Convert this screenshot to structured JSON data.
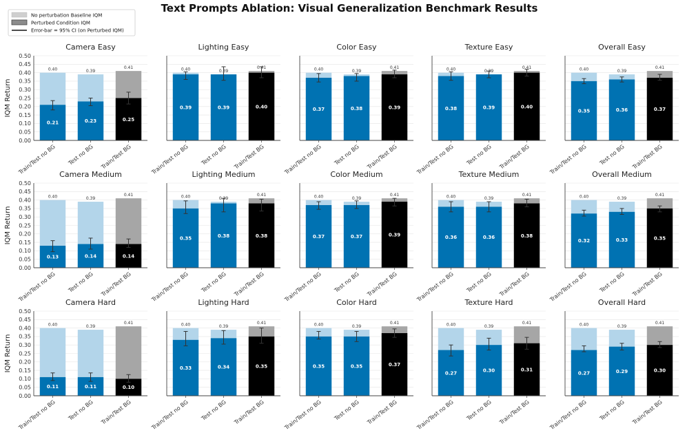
{
  "suptitle": "Text Prompts Ablation: Visual Generalization Benchmark Results",
  "legend": {
    "position": "top-left",
    "entries": [
      {
        "label": "No perturbation Baseline IQM",
        "swatch": "light"
      },
      {
        "label": "Perturbed Condition IQM",
        "swatch": "gray"
      },
      {
        "label": "Error-bar = 95% CI (on Perturbed IQM)",
        "swatch": "line"
      }
    ]
  },
  "colors": {
    "train_no_bg_perturbed": "#0072b2",
    "train_no_bg_baseline": "#b3d5ea",
    "train_test_bg_perturbed": "#000000",
    "train_test_bg_baseline": "#a6a6a6"
  },
  "chart_data": {
    "type": "bar",
    "ylabel": "IQM Return",
    "ylim": [
      0,
      0.5
    ],
    "yticks": [
      "0.00",
      "0.05",
      "0.10",
      "0.15",
      "0.20",
      "0.25",
      "0.30",
      "0.35",
      "0.40",
      "0.45",
      "0.50"
    ],
    "categories": [
      "Train/Test no BG",
      "Test no BG",
      "Train/Test BG"
    ],
    "baseline": [
      0.4,
      0.39,
      0.41
    ],
    "baseline_labels": [
      "0.40",
      "0.39",
      "0.41"
    ],
    "grid": true,
    "panels": [
      {
        "title": "Camera Easy",
        "values": [
          0.21,
          0.23,
          0.25
        ],
        "labels": [
          "0.21",
          "0.23",
          "0.25"
        ],
        "ci": [
          [
            0.18,
            0.235
          ],
          [
            0.205,
            0.25
          ],
          [
            0.215,
            0.285
          ]
        ]
      },
      {
        "title": "Lighting Easy",
        "values": [
          0.39,
          0.39,
          0.4
        ],
        "labels": [
          "0.39",
          "0.39",
          "0.40"
        ],
        "ci": [
          [
            0.36,
            0.405
          ],
          [
            0.355,
            0.435
          ],
          [
            0.37,
            0.435
          ]
        ]
      },
      {
        "title": "Color Easy",
        "values": [
          0.37,
          0.38,
          0.39
        ],
        "labels": [
          "0.37",
          "0.38",
          "0.39"
        ],
        "ci": [
          [
            0.345,
            0.395
          ],
          [
            0.35,
            0.395
          ],
          [
            0.37,
            0.415
          ]
        ]
      },
      {
        "title": "Texture Easy",
        "values": [
          0.38,
          0.39,
          0.4
        ],
        "labels": [
          "0.38",
          "0.39",
          "0.40"
        ],
        "ci": [
          [
            0.355,
            0.405
          ],
          [
            0.37,
            0.41
          ],
          [
            0.38,
            0.42
          ]
        ]
      },
      {
        "title": "Overall Easy",
        "values": [
          0.35,
          0.36,
          0.37
        ],
        "labels": [
          "0.35",
          "0.36",
          "0.37"
        ],
        "ci": [
          [
            0.335,
            0.365
          ],
          [
            0.345,
            0.375
          ],
          [
            0.355,
            0.39
          ]
        ]
      },
      {
        "title": "Camera Medium",
        "values": [
          0.13,
          0.14,
          0.14
        ],
        "labels": [
          "0.13",
          "0.14",
          "0.14"
        ],
        "ci": [
          [
            0.095,
            0.16
          ],
          [
            0.11,
            0.175
          ],
          [
            0.12,
            0.17
          ]
        ]
      },
      {
        "title": "Lighting Medium",
        "values": [
          0.35,
          0.38,
          0.38
        ],
        "labels": [
          "0.35",
          "0.38",
          "0.38"
        ],
        "ci": [
          [
            0.32,
            0.395
          ],
          [
            0.33,
            0.41
          ],
          [
            0.335,
            0.405
          ]
        ]
      },
      {
        "title": "Color Medium",
        "values": [
          0.37,
          0.37,
          0.39
        ],
        "labels": [
          "0.37",
          "0.37",
          "0.39"
        ],
        "ci": [
          [
            0.345,
            0.39
          ],
          [
            0.35,
            0.395
          ],
          [
            0.365,
            0.41
          ]
        ]
      },
      {
        "title": "Texture Medium",
        "values": [
          0.36,
          0.36,
          0.38
        ],
        "labels": [
          "0.36",
          "0.36",
          "0.38"
        ],
        "ci": [
          [
            0.33,
            0.39
          ],
          [
            0.33,
            0.39
          ],
          [
            0.36,
            0.405
          ]
        ]
      },
      {
        "title": "Overall Medium",
        "values": [
          0.32,
          0.33,
          0.35
        ],
        "labels": [
          "0.32",
          "0.33",
          "0.35"
        ],
        "ci": [
          [
            0.305,
            0.34
          ],
          [
            0.315,
            0.35
          ],
          [
            0.33,
            0.365
          ]
        ]
      },
      {
        "title": "Camera Hard",
        "values": [
          0.11,
          0.11,
          0.1
        ],
        "labels": [
          "0.11",
          "0.11",
          "0.10"
        ],
        "ci": [
          [
            0.09,
            0.135
          ],
          [
            0.085,
            0.135
          ],
          [
            0.08,
            0.125
          ]
        ]
      },
      {
        "title": "Lighting Hard",
        "values": [
          0.33,
          0.34,
          0.35
        ],
        "labels": [
          "0.33",
          "0.34",
          "0.35"
        ],
        "ci": [
          [
            0.295,
            0.38
          ],
          [
            0.305,
            0.385
          ],
          [
            0.31,
            0.4
          ]
        ]
      },
      {
        "title": "Color Hard",
        "values": [
          0.35,
          0.35,
          0.37
        ],
        "labels": [
          "0.35",
          "0.35",
          "0.37"
        ],
        "ci": [
          [
            0.335,
            0.38
          ],
          [
            0.32,
            0.38
          ],
          [
            0.345,
            0.395
          ]
        ]
      },
      {
        "title": "Texture Hard",
        "values": [
          0.27,
          0.3,
          0.31
        ],
        "labels": [
          "0.27",
          "0.30",
          "0.31"
        ],
        "ci": [
          [
            0.235,
            0.3
          ],
          [
            0.27,
            0.34
          ],
          [
            0.275,
            0.345
          ]
        ]
      },
      {
        "title": "Overall Hard",
        "values": [
          0.27,
          0.29,
          0.3
        ],
        "labels": [
          "0.27",
          "0.29",
          "0.30"
        ],
        "ci": [
          [
            0.26,
            0.295
          ],
          [
            0.27,
            0.31
          ],
          [
            0.285,
            0.32
          ]
        ]
      }
    ]
  }
}
